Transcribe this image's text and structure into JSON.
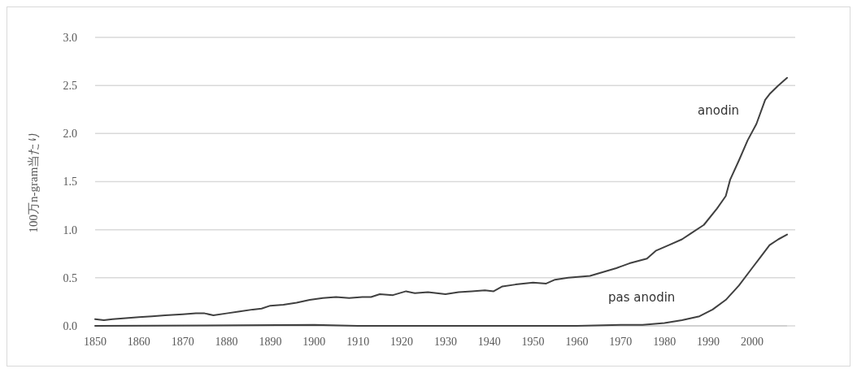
{
  "chart_data": {
    "type": "line",
    "ylabel": "100万n-gram当たり",
    "xlim": [
      1850,
      2008
    ],
    "xticks": [
      1850,
      1860,
      1870,
      1880,
      1890,
      1900,
      1910,
      1920,
      1930,
      1940,
      1950,
      1960,
      1970,
      1980,
      1990,
      2000
    ],
    "ylim": [
      0,
      3
    ],
    "yticks": [
      {
        "value": 0,
        "label": "0.0"
      },
      {
        "value": 0.5,
        "label": "0.5"
      },
      {
        "value": 1,
        "label": "1.0"
      },
      {
        "value": 1.5,
        "label": "1.5"
      },
      {
        "value": 2,
        "label": "2.0"
      },
      {
        "value": 2.5,
        "label": "2.5"
      },
      {
        "value": 3,
        "label": "3.0"
      }
    ],
    "grid": "y",
    "series": [
      {
        "name": "anodin",
        "color": "#404040",
        "x": [
          1850,
          1852,
          1854,
          1857,
          1860,
          1863,
          1866,
          1870,
          1873,
          1875,
          1877,
          1880,
          1883,
          1886,
          1888,
          1890,
          1893,
          1896,
          1899,
          1902,
          1905,
          1908,
          1911,
          1913,
          1915,
          1918,
          1921,
          1923,
          1926,
          1930,
          1933,
          1936,
          1939,
          1941,
          1943,
          1946,
          1950,
          1953,
          1955,
          1958,
          1963,
          1966,
          1969,
          1972,
          1976,
          1978,
          1981,
          1984,
          1986,
          1989,
          1992,
          1994,
          1995,
          1997,
          1999,
          2001,
          2003,
          2004,
          2006,
          2008
        ],
        "values": [
          0.07,
          0.06,
          0.07,
          0.08,
          0.09,
          0.1,
          0.11,
          0.12,
          0.13,
          0.13,
          0.11,
          0.13,
          0.15,
          0.17,
          0.18,
          0.21,
          0.22,
          0.24,
          0.27,
          0.29,
          0.3,
          0.29,
          0.3,
          0.3,
          0.33,
          0.32,
          0.36,
          0.34,
          0.35,
          0.33,
          0.35,
          0.36,
          0.37,
          0.36,
          0.41,
          0.43,
          0.45,
          0.44,
          0.48,
          0.5,
          0.52,
          0.56,
          0.6,
          0.65,
          0.7,
          0.78,
          0.84,
          0.9,
          0.96,
          1.05,
          1.22,
          1.35,
          1.52,
          1.72,
          1.93,
          2.1,
          2.35,
          2.41,
          2.5,
          2.58
        ]
      },
      {
        "name": "pas anodin",
        "color": "#404040",
        "x": [
          1850,
          1900,
          1910,
          1960,
          1970,
          1975,
          1980,
          1984,
          1988,
          1991,
          1994,
          1997,
          2000,
          2002,
          2004,
          2006,
          2008
        ],
        "values": [
          0,
          0.01,
          0,
          0,
          0.01,
          0.01,
          0.03,
          0.06,
          0.1,
          0.17,
          0.27,
          0.42,
          0.6,
          0.72,
          0.84,
          0.9,
          0.95
        ]
      }
    ]
  }
}
